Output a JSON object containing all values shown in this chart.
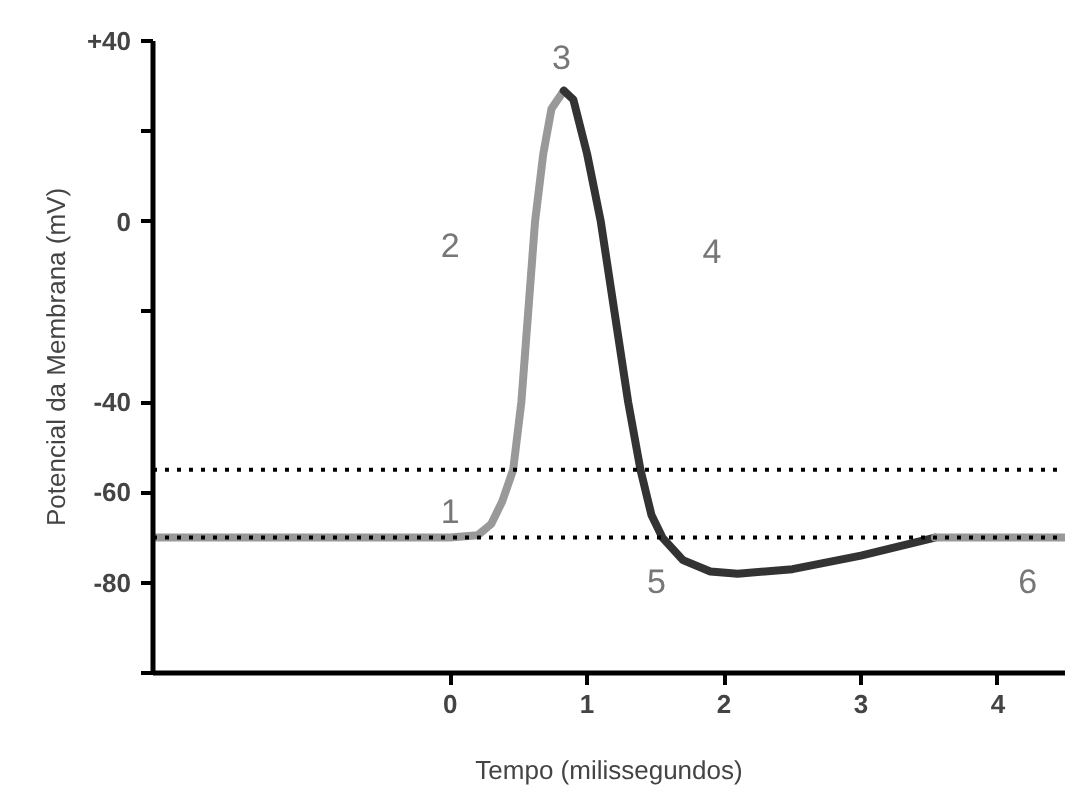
{
  "chart_data": {
    "type": "line",
    "xlabel": "Tempo (milissegundos)",
    "ylabel": "Potencial da Membrana (mV)",
    "xlim": [
      -2.17,
      4.49
    ],
    "ylim": [
      -100,
      40
    ],
    "xticks": [
      0,
      1,
      2,
      3,
      4
    ],
    "yticks": [
      {
        "value": 40,
        "label": "+40"
      },
      {
        "value": 20,
        "label": null
      },
      0,
      {
        "value": -20,
        "label": null
      },
      -40,
      -60,
      -80,
      {
        "value": -100,
        "label": null
      }
    ],
    "grid": false,
    "marker": "none",
    "line_style": "solid",
    "series": [
      {
        "color": "#999999",
        "x": [
          -2.17,
          0,
          0.2,
          0.3,
          0.38,
          0.46,
          0.52,
          0.57,
          0.62,
          0.68,
          0.74,
          0.83
        ],
        "values": [
          -70,
          -70,
          -69.5,
          -67,
          -62,
          -55,
          -40,
          -20,
          0,
          15,
          25,
          29
        ]
      },
      {
        "color": "#333333",
        "x": [
          0.83,
          0.9,
          1.0,
          1.1,
          1.2,
          1.3,
          1.39,
          1.47,
          1.55,
          1.7,
          1.9,
          2.1,
          2.5,
          3.0,
          3.54
        ],
        "values": [
          29,
          27,
          15,
          0,
          -20,
          -40,
          -55,
          -65,
          -70,
          -75,
          -77.5,
          -78,
          -77,
          -74,
          -70
        ]
      },
      {
        "color": "#999999",
        "x": [
          3.54,
          4.49
        ],
        "values": [
          -70,
          -70
        ]
      }
    ],
    "ref_lines": [
      {
        "axis": "y",
        "value": -55,
        "label": null,
        "color": "#000000",
        "line_style": "dotted"
      },
      {
        "axis": "y",
        "value": -70,
        "label": null,
        "color": "#000000",
        "line_style": "dotted"
      }
    ],
    "annotations": [
      "1",
      "2",
      "3",
      "4",
      "5",
      "6"
    ]
  }
}
